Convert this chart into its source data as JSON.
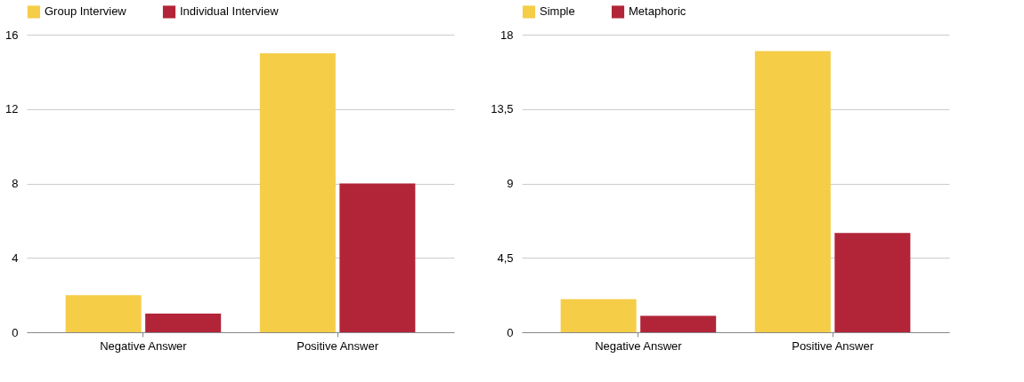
{
  "chart_data": [
    {
      "type": "bar",
      "categories": [
        "Negative Answer",
        "Positive Answer"
      ],
      "series": [
        {
          "name": "Group Interview",
          "color": "#f5cd47",
          "values": [
            2,
            15
          ]
        },
        {
          "name": "Individual Interview",
          "color": "#b22538",
          "values": [
            1,
            8
          ]
        }
      ],
      "ylim": [
        0,
        16
      ],
      "yticks": [
        0,
        4,
        8,
        12,
        16
      ],
      "grid": "y",
      "legend": "top"
    },
    {
      "type": "bar",
      "categories": [
        "Negative Answer",
        "Positive Answer"
      ],
      "series": [
        {
          "name": "Simple",
          "color": "#f5cd47",
          "values": [
            2,
            17
          ]
        },
        {
          "name": "Metaphoric",
          "color": "#b22538",
          "values": [
            1,
            6
          ]
        }
      ],
      "ylim": [
        0,
        18
      ],
      "yticks": [
        0,
        {
          "value": 4.5,
          "label": "4,5"
        },
        9,
        {
          "value": 13.5,
          "label": "13,5"
        },
        18
      ],
      "grid": "y",
      "legend": "top"
    }
  ]
}
